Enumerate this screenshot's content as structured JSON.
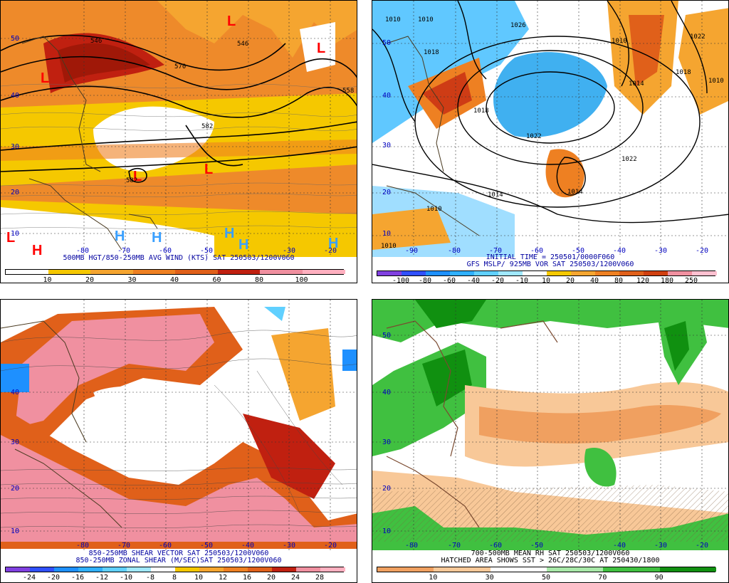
{
  "panels": [
    {
      "id": "p1",
      "caption": "500MB HGT/850-250MB AVG WIND (KTS) SAT 250503/1200V060",
      "colorbar": {
        "ticks": [
          "10",
          "20",
          "30",
          "40",
          "60",
          "80",
          "100"
        ],
        "colors": [
          "#ffffff",
          "#f5c800",
          "#f5a530",
          "#ee8022",
          "#e0601a",
          "#c02010",
          "#f090a0",
          "#ffb0c0"
        ]
      },
      "lon_labels": [
        "-80",
        "-70",
        "-60",
        "-50",
        "-30",
        "-20"
      ],
      "lat_labels": [
        "10",
        "20",
        "30",
        "40",
        "50"
      ],
      "contour_labels": [
        "546",
        "570",
        "546",
        "558",
        "582",
        "582"
      ],
      "symbols": [
        {
          "t": "L",
          "c": "red"
        },
        {
          "t": "L",
          "c": "red"
        },
        {
          "t": "L",
          "c": "red"
        },
        {
          "t": "L",
          "c": "red"
        },
        {
          "t": "L",
          "c": "red"
        },
        {
          "t": "L",
          "c": "red"
        },
        {
          "t": "H",
          "c": "red"
        },
        {
          "t": "H",
          "c": "#3aa0ff"
        },
        {
          "t": "H",
          "c": "#3aa0ff"
        },
        {
          "t": "H",
          "c": "#3aa0ff"
        },
        {
          "t": "H",
          "c": "#3aa0ff"
        },
        {
          "t": "H",
          "c": "#3aa0ff"
        }
      ]
    },
    {
      "id": "p2",
      "caption": "INITIAL TIME = 250501/0000F060",
      "caption2": "GFS MSLP/ 925MB VOR SAT 250503/1200V060",
      "colorbar": {
        "ticks": [
          "-100",
          "-80",
          "-60",
          "-40",
          "-20",
          "-10",
          "10",
          "20",
          "40",
          "80",
          "120",
          "180",
          "250"
        ],
        "colors": [
          "#8040e0",
          "#3050ff",
          "#1e90ff",
          "#30b0ff",
          "#60d0ff",
          "#a0e8ff",
          "#ffffff",
          "#f5c800",
          "#f5a530",
          "#ee8022",
          "#e0601a",
          "#d04010",
          "#f090a0",
          "#ffc0d0"
        ]
      },
      "lon_labels": [
        "-90",
        "-80",
        "-70",
        "-60",
        "-50",
        "-40",
        "-30",
        "-20"
      ],
      "lat_labels": [
        "10",
        "20",
        "30",
        "40",
        "50"
      ],
      "contour_labels": [
        "1010",
        "1010",
        "1026",
        "1018",
        "1010",
        "1022",
        "1018",
        "1014",
        "1010",
        "1018",
        "1022",
        "1022",
        "1014",
        "1014",
        "1010",
        "1010"
      ]
    },
    {
      "id": "p3",
      "caption": "850-250MB SHEAR VECTOR SAT 250503/1200V060",
      "caption2": "850-250MB ZONAL SHEAR (M/SEC)SAT 250503/1200V060",
      "colorbar": {
        "ticks": [
          "-24",
          "-20",
          "-16",
          "-12",
          "-10",
          "-8",
          "8",
          "10",
          "12",
          "16",
          "20",
          "24",
          "28"
        ],
        "colors": [
          "#8040e0",
          "#3050ff",
          "#1e90ff",
          "#30b0ff",
          "#60d0ff",
          "#a0e8ff",
          "#ffffff",
          "#f5c800",
          "#f5a530",
          "#ee8022",
          "#e0601a",
          "#c02010",
          "#f090a0",
          "#ffb0c0"
        ]
      },
      "lon_labels": [
        "-80",
        "-70",
        "-60",
        "-50",
        "-40",
        "-30",
        "-20"
      ],
      "lat_labels": [
        "10",
        "20",
        "30",
        "40"
      ]
    },
    {
      "id": "p4",
      "caption": "700-500MB MEAN RH SAT 250503/1200V060",
      "caption2": "HATCHED AREA SHOWS SST > 26C/28C/30C AT 250430/1800",
      "colorbar": {
        "ticks": [
          "10",
          "30",
          "50",
          "70",
          "90"
        ],
        "colors": [
          "#f0a060",
          "#f8c898",
          "#ffffff",
          "#a8e8a8",
          "#40c040",
          "#109010"
        ]
      },
      "lon_labels": [
        "-80",
        "-70",
        "-60",
        "-50",
        "-40",
        "-30",
        "-20"
      ],
      "lat_labels": [
        "10",
        "20",
        "30",
        "40",
        "50"
      ]
    }
  ]
}
